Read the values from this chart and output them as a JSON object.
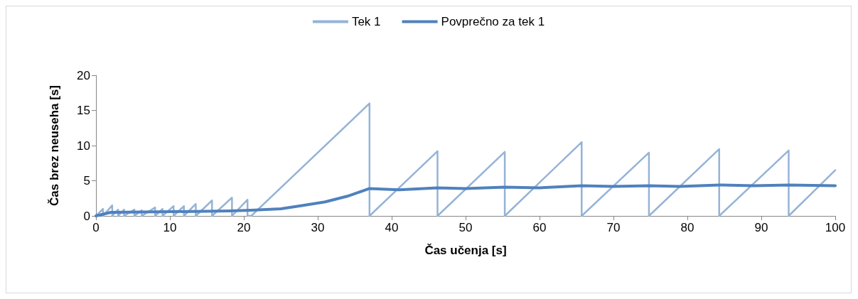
{
  "chart_data": {
    "type": "line",
    "xlabel": "Čas učenja [s]",
    "ylabel": "Čas brez neuseha [s]",
    "xlim": [
      0,
      100
    ],
    "xticks": [
      0,
      10,
      20,
      30,
      40,
      50,
      60,
      70,
      80,
      90,
      100
    ],
    "ylim": [
      0,
      20
    ],
    "yticks": [
      0,
      5,
      10,
      15,
      20
    ],
    "grid": false,
    "legend": "top",
    "marker": "none",
    "series": [
      {
        "name": "Tek 1",
        "color": "#95b3d7",
        "x": [
          0,
          0.95,
          0.95,
          2.2,
          2.2,
          3.0,
          3.0,
          3.8,
          3.8,
          5.2,
          5.2,
          6.2,
          6.2,
          8.0,
          8.0,
          9.0,
          9.0,
          10.5,
          10.5,
          11.9,
          11.9,
          13.5,
          13.5,
          15.7,
          15.7,
          18.4,
          18.4,
          20.5,
          20.5,
          21,
          37,
          37,
          46.2,
          46.2,
          55.3,
          55.3,
          65.7,
          65.7,
          74.8,
          74.8,
          84.3,
          84.3,
          93.7,
          93.7,
          100
        ],
        "values": [
          0,
          1.0,
          0,
          1.5,
          0,
          0.9,
          0,
          0.9,
          0,
          0.9,
          0,
          0.8,
          0,
          1.2,
          0,
          1.0,
          0,
          1.4,
          0,
          1.4,
          0,
          1.7,
          0,
          2.2,
          0,
          2.6,
          0,
          2.3,
          0,
          0,
          16,
          0,
          9.2,
          0,
          9.1,
          0,
          10.5,
          0,
          9.0,
          0,
          9.5,
          0,
          9.3,
          0,
          6.5
        ]
      },
      {
        "name": "Povprečno za tek 1",
        "color": "#4f81bd",
        "x": [
          0,
          2,
          10,
          18,
          21,
          25,
          28,
          31,
          34,
          37,
          41,
          46.2,
          50,
          55.3,
          60,
          65.7,
          70,
          74.8,
          79,
          84.3,
          89,
          93.7,
          100
        ],
        "values": [
          0,
          0.5,
          0.6,
          0.7,
          0.8,
          1.0,
          1.5,
          2.0,
          2.8,
          3.9,
          3.7,
          4.0,
          3.9,
          4.1,
          4.0,
          4.3,
          4.2,
          4.3,
          4.2,
          4.4,
          4.3,
          4.4,
          4.3
        ]
      }
    ]
  }
}
